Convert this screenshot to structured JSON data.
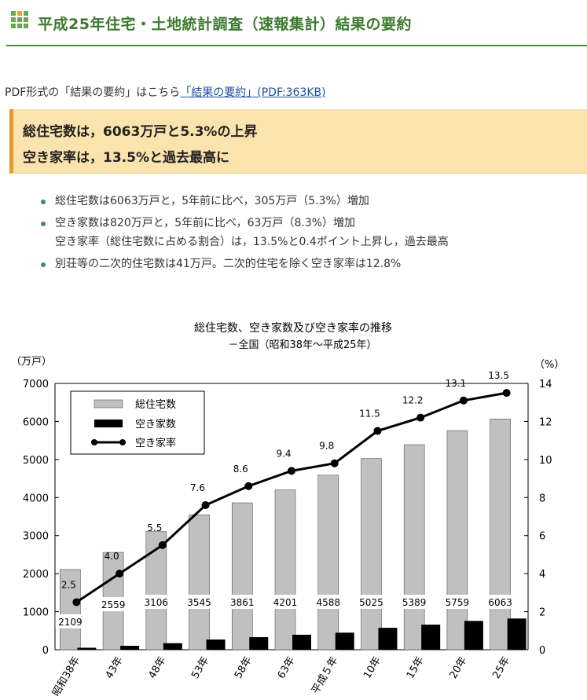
{
  "header": {
    "title": "平成25年住宅・土地統計調査（速報集計）結果の要約"
  },
  "pdf": {
    "prefix": "PDF形式の「結果の要約」はこちら",
    "link_text": "「結果の要約」(PDF:363KB)"
  },
  "highlight": {
    "line1": "総住宅数は，6063万戸と5.3%の上昇",
    "line2": "空き家率は，13.5%と過去最高に"
  },
  "bullets": [
    {
      "text": "総住宅数は6063万戸と，5年前に比べ，305万戸（5.3%）増加",
      "sub": ""
    },
    {
      "text": "空き家数は820万戸と，5年前に比べ，63万戸（8.3%）増加",
      "sub": "空き家率（総住宅数に占める割合）は，13.5%と0.4ポイント上昇し，過去最高"
    },
    {
      "text": "別荘等の二次的住宅数は41万戸。二次的住宅を除く空き家率は12.8%",
      "sub": ""
    }
  ],
  "colors": {
    "title_green": "#3d7a2f",
    "accent_orange": "#e89a2a",
    "highlight_bg": "#fae3ac",
    "link_blue": "#1a4fa0",
    "bar_gray": "#c0c0c0",
    "bar_black": "#000000"
  },
  "chart_data": {
    "type": "bar",
    "title": "総住宅数、空き家数及び空き家率の推移",
    "subtitle": "－全国（昭和38年～平成25年）",
    "ylabel": "（万戸）",
    "y2label": "（%）",
    "categories": [
      "昭和38年",
      "43年",
      "48年",
      "53年",
      "58年",
      "63年",
      "平成５年",
      "10年",
      "15年",
      "20年",
      "25年"
    ],
    "ylim": [
      0,
      7000
    ],
    "yticks": [
      "0",
      "1000",
      "2000",
      "3000",
      "4000",
      "5000",
      "6000",
      "7000"
    ],
    "y2lim": [
      0,
      14
    ],
    "y2ticks": [
      "0",
      "2",
      "4",
      "6",
      "8",
      "10",
      "12",
      "14"
    ],
    "grid": false,
    "legend_position": "top-left",
    "series": [
      {
        "name": "総住宅数",
        "kind": "bar",
        "color": "#c0c0c0",
        "values": [
          2109,
          2559,
          3106,
          3545,
          3861,
          4201,
          4588,
          5025,
          5389,
          5759,
          6063
        ],
        "labels": [
          "2109",
          "2559",
          "3106",
          "3545",
          "3861",
          "4201",
          "4588",
          "5025",
          "5389",
          "5759",
          "6063"
        ]
      },
      {
        "name": "空き家数",
        "kind": "bar",
        "color": "#000000",
        "values": [
          52,
          103,
          172,
          268,
          330,
          394,
          448,
          576,
          659,
          757,
          820
        ]
      },
      {
        "name": "空き家率",
        "kind": "line",
        "axis": "right",
        "values": [
          2.5,
          4.0,
          5.5,
          7.6,
          8.6,
          9.4,
          9.8,
          11.5,
          12.2,
          13.1,
          13.5
        ],
        "labels": [
          "2.5",
          "4.0",
          "5.5",
          "7.6",
          "8.6",
          "9.4",
          "9.8",
          "11.5",
          "12.2",
          "13.1",
          "13.5"
        ]
      }
    ]
  }
}
